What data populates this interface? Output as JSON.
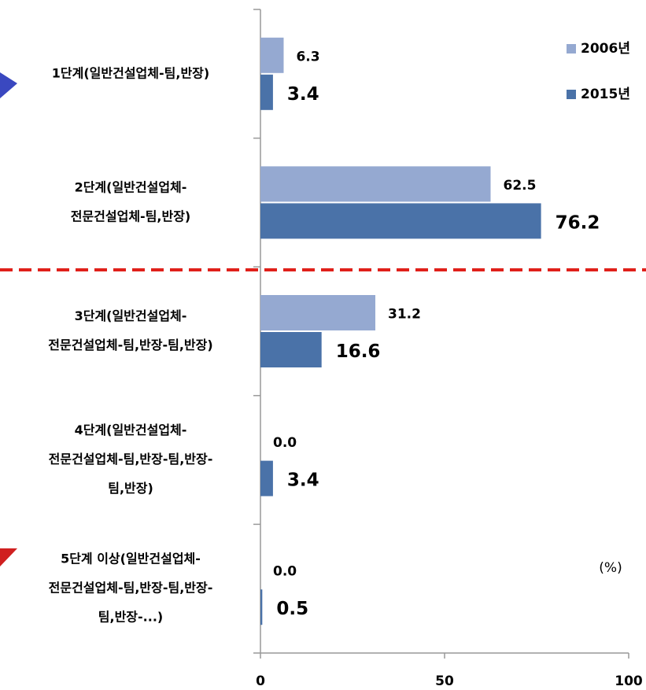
{
  "chart_data": {
    "type": "bar",
    "orientation": "horizontal",
    "categories": [
      [
        "1단계(일반건설업체-팀,반장)"
      ],
      [
        "2단계(일반건설업체-",
        "전문건설업체-팀,반장)"
      ],
      [
        "3단계(일반건설업체-",
        "전문건설업체-팀,반장-팀,반장)"
      ],
      [
        "4단계(일반건설업체-",
        "전문건설업체-팀,반장-팀,반장-",
        "팀,반장)"
      ],
      [
        "5단계 이상(일반건설업체-",
        "전문건설업체-팀,반장-팀,반장-",
        "팀,반장-...)"
      ]
    ],
    "series": [
      {
        "name": "2006년",
        "color": "#95a9d1",
        "values": [
          6.3,
          62.5,
          31.2,
          0,
          0
        ],
        "value_labels": [
          "6.3",
          "62.5",
          "31.2",
          "0.0",
          "0.0"
        ]
      },
      {
        "name": "2015년",
        "color": "#4a72a8",
        "values": [
          3.4,
          76.2,
          16.6,
          3.4,
          0.5
        ]
      }
    ],
    "xlim": [
      0,
      100
    ],
    "xticks": [
      0,
      50,
      100
    ],
    "annotation": "(%)",
    "legend": "upper right"
  }
}
